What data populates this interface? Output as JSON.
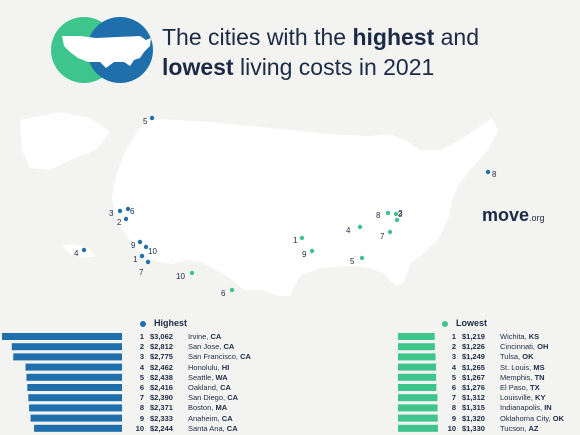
{
  "title": {
    "part1": "The cities with the ",
    "highest": "highest",
    "part2": " and ",
    "lowest": "lowest",
    "part3": " living costs in 2021"
  },
  "brand": {
    "name": "move",
    "suffix": ".org"
  },
  "colors": {
    "highest": "#1f6fad",
    "lowest": "#3ec48d",
    "map": "#ffffff",
    "text": "#1c2b45"
  },
  "legend": {
    "highest_label": "Highest",
    "lowest_label": "Lowest"
  },
  "highest": [
    {
      "rank": "1",
      "cost": "$3,062",
      "city": "Irvine, ",
      "state": "CA",
      "value": 3062
    },
    {
      "rank": "2",
      "cost": "$2,812",
      "city": "San Jose, ",
      "state": "CA",
      "value": 2812
    },
    {
      "rank": "3",
      "cost": "$2,775",
      "city": "San Francisco, ",
      "state": "CA",
      "value": 2775
    },
    {
      "rank": "4",
      "cost": "$2,462",
      "city": "Honolulu, ",
      "state": "HI",
      "value": 2462
    },
    {
      "rank": "5",
      "cost": "$2,438",
      "city": "Seattle, ",
      "state": "WA",
      "value": 2438
    },
    {
      "rank": "6",
      "cost": "$2,416",
      "city": "Oakland, ",
      "state": "CA",
      "value": 2416
    },
    {
      "rank": "7",
      "cost": "$2,390",
      "city": "San Diego, ",
      "state": "CA",
      "value": 2390
    },
    {
      "rank": "8",
      "cost": "$2,371",
      "city": "Boston, ",
      "state": "MA",
      "value": 2371
    },
    {
      "rank": "9",
      "cost": "$2,333",
      "city": "Anaheim, ",
      "state": "CA",
      "value": 2333
    },
    {
      "rank": "10",
      "cost": "$2,244",
      "city": "Santa Ana, ",
      "state": "CA",
      "value": 2244
    }
  ],
  "lowest": [
    {
      "rank": "1",
      "cost": "$1,219",
      "city": "Wichita, ",
      "state": "KS",
      "value": 1219
    },
    {
      "rank": "2",
      "cost": "$1,226",
      "city": "Cincinnati, ",
      "state": "OH",
      "value": 1226
    },
    {
      "rank": "3",
      "cost": "$1,249",
      "city": "Tulsa, ",
      "state": "OK",
      "value": 1249
    },
    {
      "rank": "4",
      "cost": "$1,265",
      "city": "St. Louis, ",
      "state": "MS",
      "value": 1265
    },
    {
      "rank": "5",
      "cost": "$1,267",
      "city": "Memphis, ",
      "state": "TN",
      "value": 1267
    },
    {
      "rank": "6",
      "cost": "$1,276",
      "city": "El Paso, ",
      "state": "TX",
      "value": 1276
    },
    {
      "rank": "7",
      "cost": "$1,312",
      "city": "Louisville, ",
      "state": "KY",
      "value": 1312
    },
    {
      "rank": "8",
      "cost": "$1,315",
      "city": "Indianapolis, ",
      "state": "IN",
      "value": 1315
    },
    {
      "rank": "9",
      "cost": "$1,320",
      "city": "Oklahoma City, ",
      "state": "OK",
      "value": 1320
    },
    {
      "rank": "10",
      "cost": "$1,330",
      "city": "Tucson, ",
      "state": "AZ",
      "value": 1330
    }
  ],
  "map_markers": {
    "highest_labels": [
      "5",
      "3",
      "6",
      "2",
      "4",
      "9",
      "10",
      "1",
      "7",
      "8"
    ],
    "lowest_labels": [
      "1",
      "3",
      "9",
      "4",
      "8",
      "2",
      "7",
      "5",
      "6",
      "10"
    ]
  }
}
